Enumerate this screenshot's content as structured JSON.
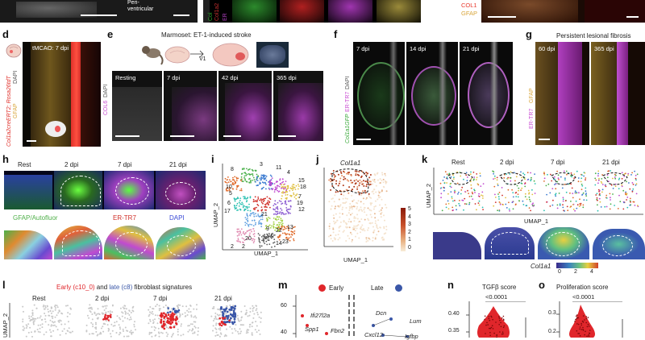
{
  "panels": {
    "top_row": {
      "periventricular_label": "Peri-\nventricular",
      "col1_label": "COL1",
      "gfap_label": "GFAP"
    },
    "d": {
      "letter": "d",
      "title": "tMCAO: 7 dpi",
      "side_label_dapi": "DAPI",
      "side_label_gfap": "GFAP",
      "side_label_col": "Col1a2creERT2; Rosa26tdT"
    },
    "e": {
      "letter": "e",
      "title": "Marmoset: ET-1-induced stroke",
      "v1_label": "V1",
      "side_label_col6": "COL6",
      "side_label_dapi": "DAPI",
      "timepoints": [
        "Resting",
        "7 dpi",
        "42 dpi",
        "365 dpi"
      ]
    },
    "f": {
      "letter": "f",
      "timepoints": [
        "7 dpi",
        "14 dpi",
        "21 dpi"
      ],
      "side_label_col": "Col1a1GFP",
      "side_label_ertr7": "ER-TR7",
      "side_label_dapi": "DAPI"
    },
    "g": {
      "letter": "g",
      "title": "Persistent lesional fibrosis",
      "timepoints": [
        "60 dpi",
        "365 dpi"
      ],
      "side_label_ertr7": "ER-TR7",
      "side_label_gfap": "GFAP"
    },
    "h": {
      "letter": "h",
      "timepoints": [
        "Rest",
        "2 dpi",
        "7 dpi",
        "21 dpi"
      ],
      "legend_gfap": "GFAP/Autofluor",
      "legend_ertr7": "ER-TR7",
      "legend_dapi": "DAPI"
    },
    "i": {
      "letter": "i",
      "xlabel": "UMAP_1",
      "ylabel": "UMAP_2",
      "clusters": [
        "8",
        "3",
        "11",
        "4",
        "15",
        "18",
        "7",
        "19",
        "12",
        "10",
        "5",
        "6",
        "17",
        "21",
        "9",
        "16",
        "22",
        "13",
        "20",
        "14",
        "2",
        "23",
        "2"
      ]
    },
    "j": {
      "letter": "j",
      "gene": "Col1a1",
      "xlabel": "UMAP_1",
      "scale_ticks": [
        "5",
        "4",
        "3",
        "2",
        "1",
        "0"
      ]
    },
    "k": {
      "letter": "k",
      "timepoints": [
        "Rest",
        "2 dpi",
        "7 dpi",
        "21 dpi"
      ],
      "xlabel": "UMAP_1",
      "ylabel": "UMAP_2",
      "gene": "Col1a1",
      "scale_ticks": [
        "0",
        "2",
        "4"
      ]
    },
    "l": {
      "letter": "l",
      "title_early": "Early (c10_0)",
      "title_and": " and ",
      "title_late": "late (c8)",
      "title_rest": " fibroblast signatures",
      "timepoints": [
        "Rest",
        "2 dpi",
        "7 dpi",
        "21 dpi"
      ],
      "ylabel": "UMAP_2"
    },
    "m": {
      "letter": "m",
      "legend_early": "Early",
      "legend_late": "Late",
      "ytick_60": "60",
      "ytick_40": "40",
      "genes": [
        "Ifi27l2a",
        "Spp1",
        "Fbn2",
        "Dcn",
        "Lum",
        "Cxcl12",
        "Igfbp"
      ]
    },
    "n": {
      "letter": "n",
      "title": "TGFβ score",
      "pvalue": "<0.0001",
      "yticks": [
        "0.40",
        "0.35"
      ]
    },
    "o": {
      "letter": "o",
      "title": "Proliferation score",
      "pvalue": "<0.0001",
      "yticks": [
        "0.3",
        "0.2"
      ]
    }
  },
  "colors": {
    "early": "#e0262b",
    "late": "#3a57a8",
    "gfap": "#e8b84a",
    "ertr7": "#c84bd1",
    "dapi": "#4a55d6",
    "col": "#e83a2e",
    "green": "#4fc24a"
  }
}
